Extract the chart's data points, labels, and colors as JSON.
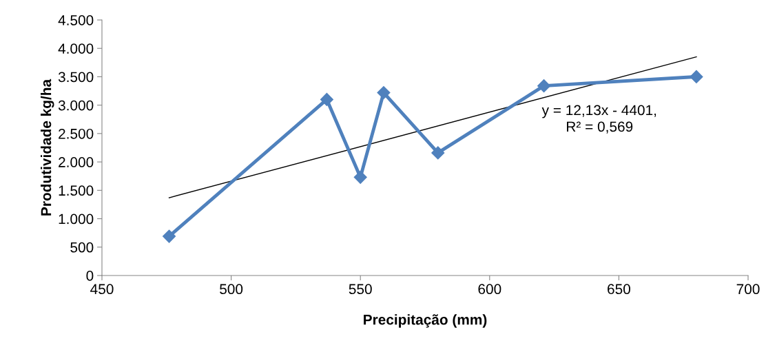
{
  "chart_data": {
    "type": "line",
    "xlabel": "Precipitação (mm)",
    "ylabel": "Produtividade kg/ha",
    "x": [
      476,
      537,
      550,
      559,
      580,
      621,
      680
    ],
    "series": [
      {
        "type": "line",
        "color": "#4f81bd",
        "values": [
          690,
          3100,
          1730,
          3220,
          2160,
          3340,
          3500
        ],
        "marker": "diamond"
      },
      {
        "type": "line",
        "color": "#000000",
        "x": [
          476,
          680
        ],
        "values": [
          1370,
          3850
        ],
        "marker": "none"
      }
    ],
    "annotations": [
      "y = 12,13x - 4401,\nR² = 0,569"
    ],
    "xlim": [
      450,
      700
    ],
    "xticks": [
      450,
      500,
      550,
      600,
      650,
      700
    ],
    "ylim": [
      0,
      4500
    ],
    "yticks": [
      0,
      {
        "value": 500,
        "label": "500"
      },
      {
        "value": 1000,
        "label": "1.000"
      },
      {
        "value": 1500,
        "label": "1.500"
      },
      {
        "value": 2000,
        "label": "2.000"
      },
      {
        "value": 2500,
        "label": "2.500"
      },
      {
        "value": 3000,
        "label": "3.000"
      },
      {
        "value": 3500,
        "label": "3.500"
      },
      {
        "value": 4000,
        "label": "4.000"
      },
      {
        "value": 4500,
        "label": "4.500"
      }
    ],
    "grid": false,
    "legend": false
  }
}
